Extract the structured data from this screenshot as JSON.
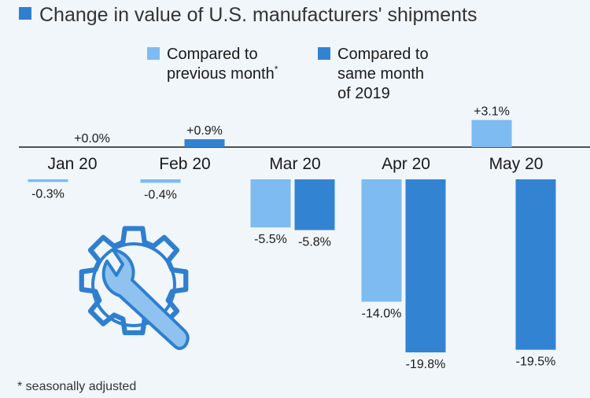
{
  "chart_data": {
    "type": "bar",
    "title": "Change in value of U.S. manufacturers' shipments",
    "categories": [
      "Jan 20",
      "Feb 20",
      "Mar 20",
      "Apr 20",
      "May 20"
    ],
    "series": [
      {
        "name": "Compared to previous month*",
        "legend_lines": [
          "Compared to",
          "previous month"
        ],
        "legend_suffix": "*",
        "color": "#7dbbf0",
        "values": [
          -0.3,
          -0.4,
          -5.5,
          -14.0,
          3.1
        ],
        "labels": [
          "-0.3%",
          "-0.4%",
          "-5.5%",
          "-14.0%",
          "+3.1%"
        ]
      },
      {
        "name": "Compared to same month of 2019",
        "legend_lines": [
          "Compared to",
          "same month",
          "of 2019"
        ],
        "color": "#3383d3",
        "values": [
          0.0,
          0.9,
          -5.8,
          -19.8,
          -19.5
        ],
        "labels": [
          "+0.0%",
          "+0.9%",
          "-5.8%",
          "-19.8%",
          "-19.5%"
        ]
      }
    ],
    "ylim": [
      -19.8,
      3.1
    ],
    "footnote": "* seasonally adjusted",
    "icon": "wrench-gear-icon"
  }
}
